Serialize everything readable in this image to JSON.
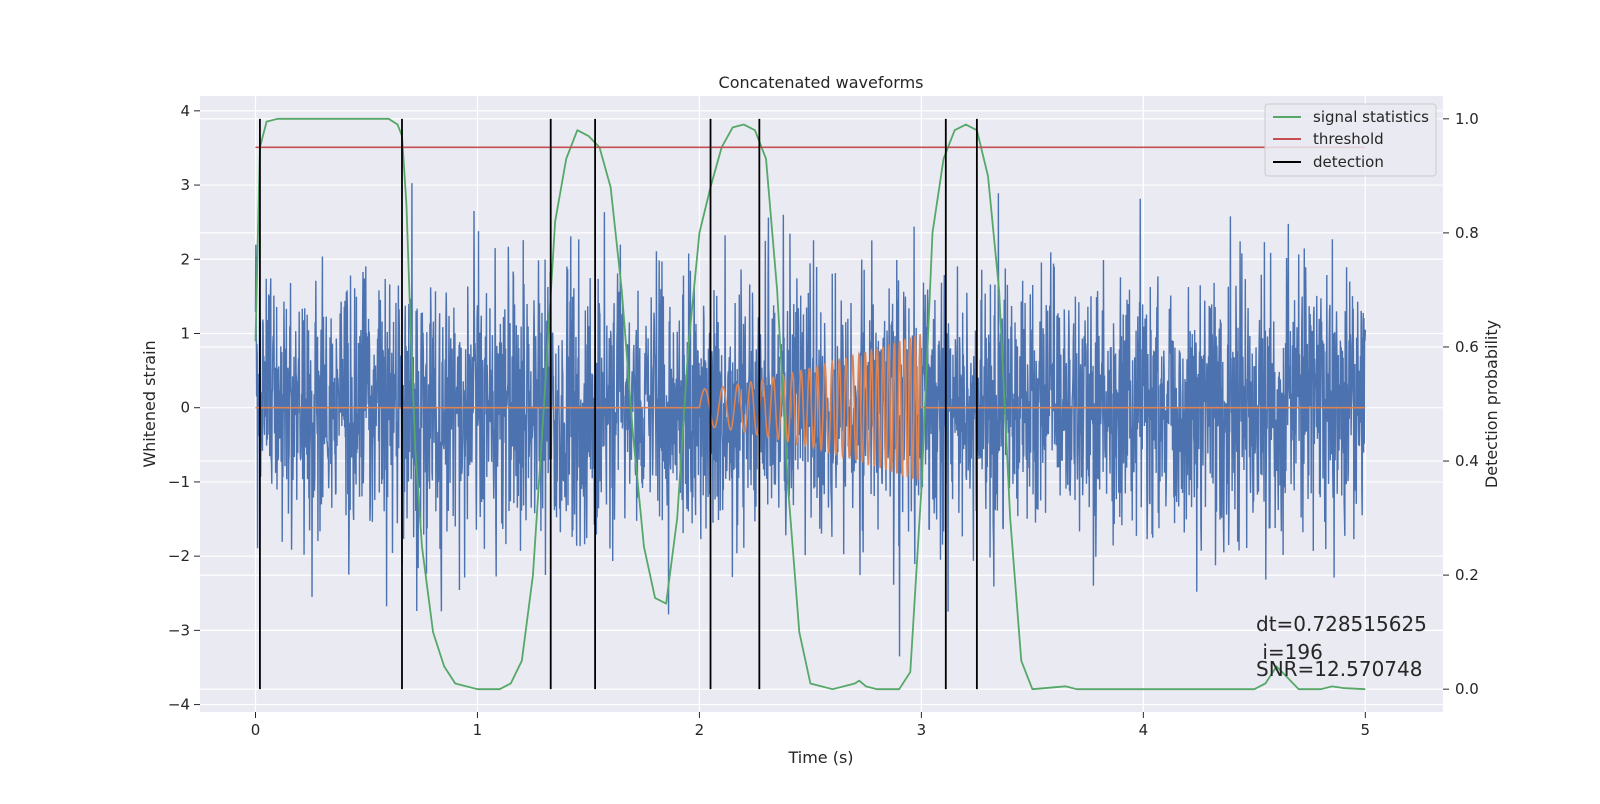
{
  "chart_data": {
    "type": "line",
    "title": "Concatenated waveforms",
    "xlabel": "Time (s)",
    "ylabel_left": "Whitened strain",
    "ylabel_right": "Detection probability",
    "xlim": [
      -0.25,
      5.35
    ],
    "ylim_left": [
      -4.1,
      4.2
    ],
    "ylim_right": [
      -0.04,
      1.04
    ],
    "x_ticks": [
      0,
      1,
      2,
      3,
      4,
      5
    ],
    "y_ticks_left": [
      -4,
      -3,
      -2,
      -1,
      0,
      1,
      2,
      3,
      4
    ],
    "y_ticks_right": [
      0.0,
      0.2,
      0.4,
      0.6,
      0.8,
      1.0
    ],
    "x_tick_labels": [
      "0",
      "1",
      "2",
      "3",
      "4",
      "5"
    ],
    "y_tick_labels_left": [
      "−4",
      "−3",
      "−2",
      "−1",
      "0",
      "1",
      "2",
      "3",
      "4"
    ],
    "y_tick_labels_right": [
      "0.0",
      "0.2",
      "0.4",
      "0.6",
      "0.8",
      "1.0"
    ],
    "grid": true,
    "legend_position": "top-right",
    "series": [
      {
        "name": "",
        "axis": "left",
        "kind": "noise",
        "color": "#4c72b0",
        "x_range": [
          0,
          5
        ],
        "amplitude_approx": 3.8
      },
      {
        "name": "",
        "axis": "left",
        "kind": "chirp",
        "color": "#dd8452",
        "x_range": [
          2.0,
          3.0
        ],
        "amplitude_start": 0.25,
        "amplitude_end": 1.0,
        "freq_start_hz": 10,
        "freq_end_hz": 45
      },
      {
        "name": "signal statistics",
        "axis": "right",
        "color": "#55a868",
        "x": [
          0,
          0.02,
          0.05,
          0.1,
          0.15,
          0.3,
          0.5,
          0.6,
          0.64,
          0.66,
          0.68,
          0.7,
          0.72,
          0.75,
          0.8,
          0.85,
          0.9,
          1.0,
          1.1,
          1.15,
          1.2,
          1.25,
          1.3,
          1.35,
          1.4,
          1.45,
          1.5,
          1.55,
          1.6,
          1.65,
          1.7,
          1.75,
          1.8,
          1.85,
          1.9,
          1.95,
          2.0,
          2.05,
          2.1,
          2.15,
          2.2,
          2.25,
          2.3,
          2.35,
          2.4,
          2.45,
          2.5,
          2.6,
          2.7,
          2.72,
          2.75,
          2.8,
          2.9,
          2.95,
          3.0,
          3.05,
          3.1,
          3.15,
          3.2,
          3.25,
          3.3,
          3.35,
          3.4,
          3.45,
          3.5,
          3.65,
          3.7,
          4.0,
          4.5,
          4.55,
          4.6,
          4.65,
          4.7,
          4.8,
          4.85,
          4.9,
          5.0
        ],
        "y": [
          0.61,
          0.95,
          0.995,
          1.0,
          1.0,
          1.0,
          1.0,
          1.0,
          0.99,
          0.97,
          0.85,
          0.62,
          0.42,
          0.25,
          0.1,
          0.04,
          0.01,
          0.0,
          0.0,
          0.01,
          0.05,
          0.2,
          0.5,
          0.82,
          0.93,
          0.98,
          0.97,
          0.95,
          0.88,
          0.7,
          0.45,
          0.25,
          0.16,
          0.15,
          0.3,
          0.6,
          0.8,
          0.88,
          0.95,
          0.985,
          0.99,
          0.98,
          0.93,
          0.7,
          0.35,
          0.1,
          0.01,
          0.0,
          0.01,
          0.015,
          0.005,
          0.0,
          0.0,
          0.03,
          0.35,
          0.8,
          0.93,
          0.98,
          0.99,
          0.98,
          0.9,
          0.7,
          0.3,
          0.05,
          0.0,
          0.005,
          0.0,
          0.0,
          0.0,
          0.01,
          0.04,
          0.02,
          0.0,
          0.0,
          0.005,
          0.002,
          0.0
        ]
      },
      {
        "name": "threshold",
        "axis": "right",
        "color": "#c44e52",
        "x": [
          0,
          5
        ],
        "y": [
          0.95,
          0.95
        ]
      },
      {
        "name": "detection",
        "axis": "right",
        "kind": "vlines",
        "color": "#000000",
        "x": [
          0.02,
          0.66,
          1.33,
          1.53,
          2.05,
          2.27,
          3.11,
          3.25
        ],
        "y_range": [
          0.0,
          1.0
        ]
      }
    ],
    "annotations": [
      "dt=0.728515625",
      " i=196",
      "SNR=12.570748"
    ]
  }
}
